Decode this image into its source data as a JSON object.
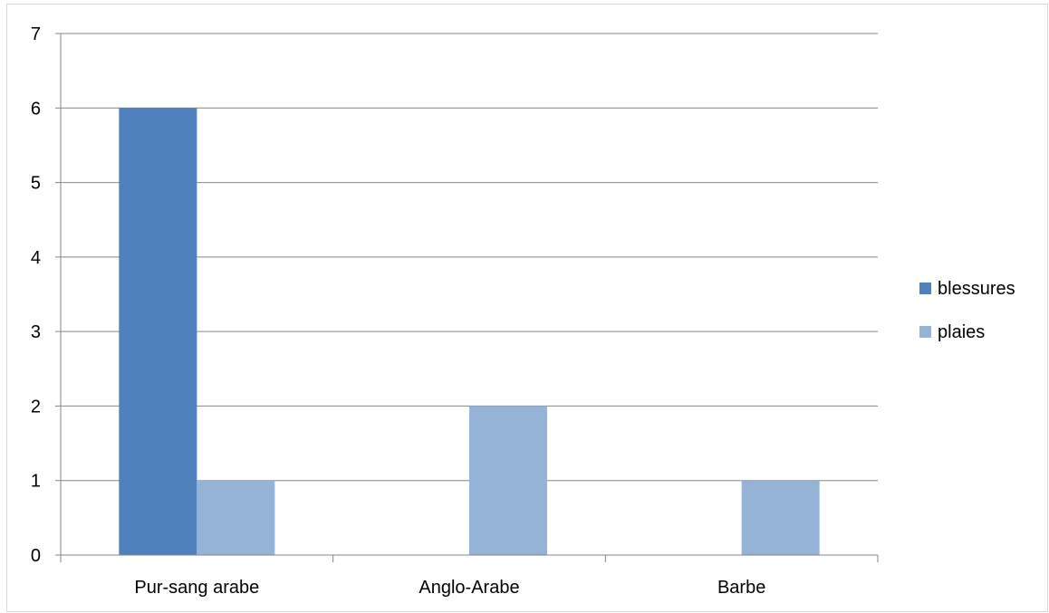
{
  "chart_data": {
    "type": "bar",
    "categories": [
      "Pur-sang arabe",
      "Anglo-Arabe",
      "Barbe"
    ],
    "series": [
      {
        "name": "blessures",
        "values": [
          6,
          0,
          0
        ],
        "color": "#4f81bd"
      },
      {
        "name": "plaies",
        "values": [
          1,
          2,
          1
        ],
        "color": "#95b3d7"
      }
    ],
    "title": "",
    "xlabel": "",
    "ylabel": "",
    "ylim": [
      0,
      7
    ],
    "yticks": [
      0,
      1,
      2,
      3,
      4,
      5,
      6,
      7
    ],
    "grid": true,
    "gridColor": "#868686",
    "axisColor": "#868686",
    "legend": "right"
  }
}
